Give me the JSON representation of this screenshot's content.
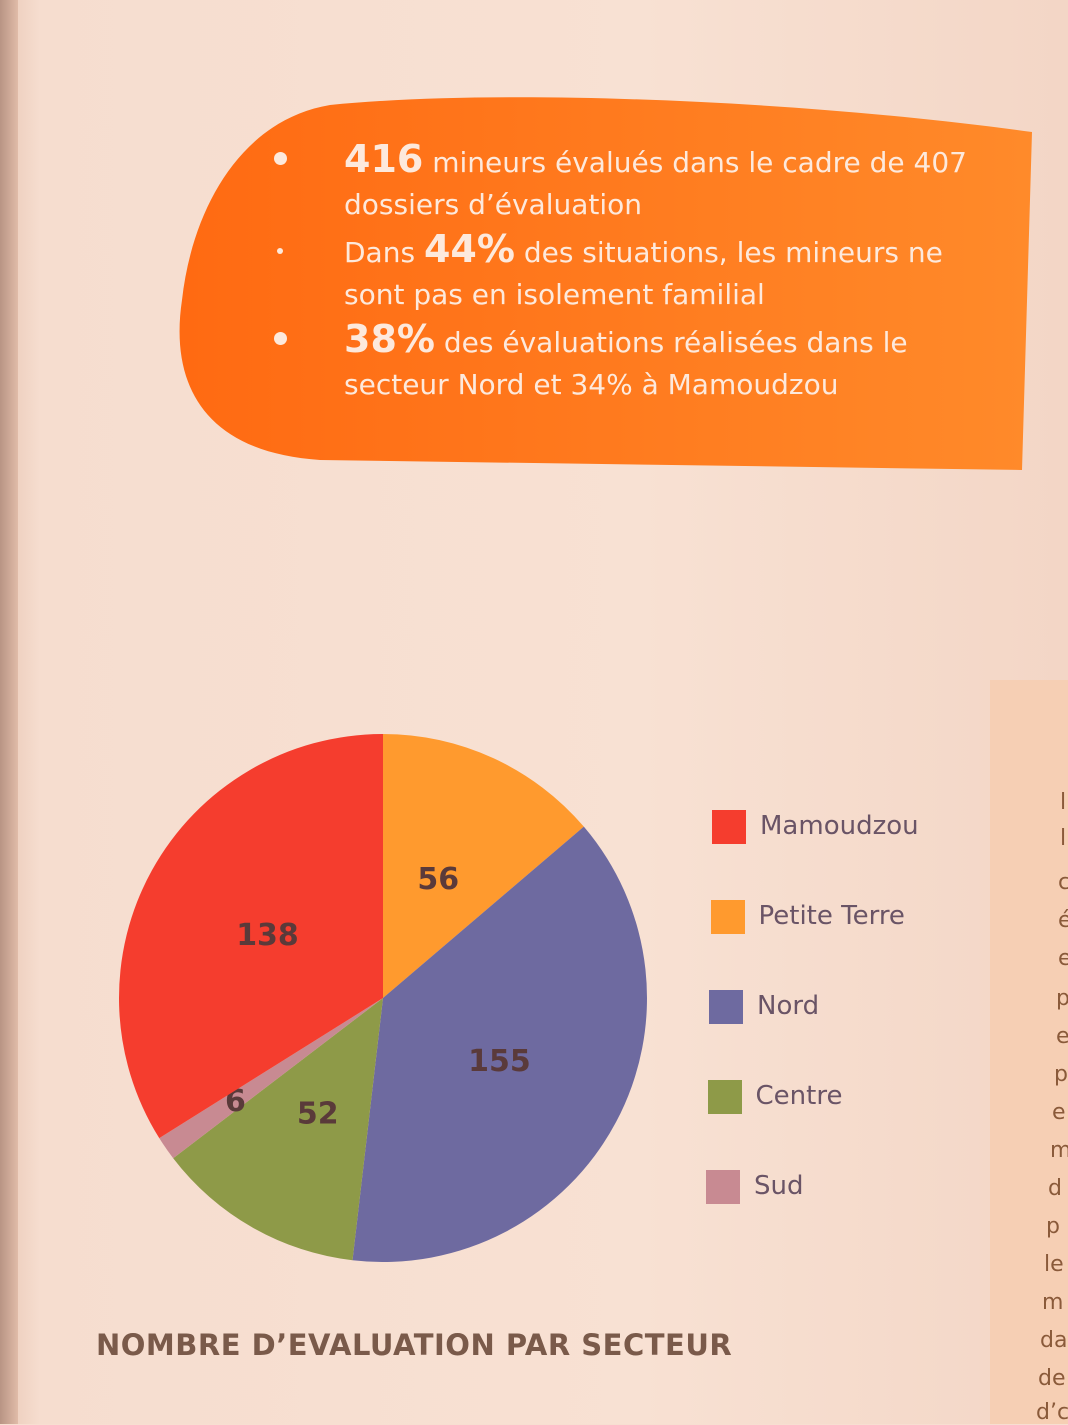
{
  "highlights": [
    {
      "strong": "416",
      "text": " mineurs évalués dans le cadre de 407 dossiers d’évaluation"
    },
    {
      "prefix": "Dans ",
      "strong": "44%",
      "text": " des situations, les mineurs ne sont pas en isolement familial"
    },
    {
      "strong": "38%",
      "text": " des évaluations réalisées dans le secteur Nord et 34% à Mamoudzou"
    }
  ],
  "side_text_fragments": [
    "l",
    "l",
    "c",
    "é",
    "e",
    "p",
    "e",
    "p",
    "e",
    "m",
    "d",
    "p",
    "le",
    "m",
    "da",
    "de",
    "d’c"
  ],
  "chart_data": {
    "type": "pie",
    "title": "NOMBRE D’EVALUATION PAR SECTEUR",
    "start_angle_deg": 0,
    "direction": "clockwise",
    "legend_position": "right",
    "slices": [
      {
        "label": "Petite Terre",
        "value": 56,
        "color": "#ff9a2e"
      },
      {
        "label": "Nord",
        "value": 155,
        "color": "#6e6aa0"
      },
      {
        "label": "Centre",
        "value": 52,
        "color": "#8e9a48"
      },
      {
        "label": "Sud",
        "value": 6,
        "color": "#c88a92"
      },
      {
        "label": "Mamoudzou",
        "value": 138,
        "color": "#f53d2e"
      }
    ],
    "legend": [
      {
        "label": "Mamoudzou",
        "color": "#f53d2e"
      },
      {
        "label": "Petite Terre",
        "color": "#ff9a2e"
      },
      {
        "label": "Nord",
        "color": "#6e6aa0"
      },
      {
        "label": "Centre",
        "color": "#8e9a48"
      },
      {
        "label": "Sud",
        "color": "#c88a92"
      }
    ]
  }
}
